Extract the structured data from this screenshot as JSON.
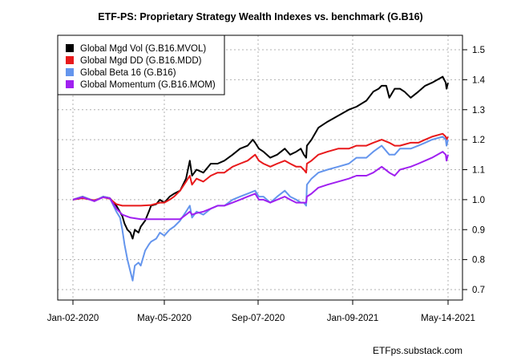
{
  "chart_data": {
    "type": "line",
    "title": "ETF-PS: Proprietary Strategy Wealth Indexes vs. benchmark (G.B16)",
    "source_note": "ETFps.substack.com",
    "xlabel": "",
    "ylabel": "",
    "x_range": [
      "2020-01-02",
      "2021-05-14"
    ],
    "ylim": [
      0.67,
      1.53
    ],
    "grid": true,
    "legend_position": "top-left",
    "x_ticks": [
      {
        "label": "Jan-02-2020",
        "date": "2020-01-02"
      },
      {
        "label": "May-05-2020",
        "date": "2020-05-05"
      },
      {
        "label": "Sep-07-2020",
        "date": "2020-09-07"
      },
      {
        "label": "Jan-09-2021",
        "date": "2021-01-09"
      },
      {
        "label": "May-14-2021",
        "date": "2021-05-14"
      }
    ],
    "y_ticks": [
      0.7,
      0.8,
      0.9,
      1.0,
      1.1,
      1.2,
      1.3,
      1.4,
      1.5
    ],
    "y_tick_labels": [
      "0.7",
      "0.8",
      "0.9",
      "1.0",
      "1.1",
      "1.2",
      "1.3",
      "1.4",
      "1.5"
    ],
    "series": [
      {
        "name": "Global Mgd Vol (G.B16.MVOL)",
        "color": "#000000",
        "points": [
          [
            "2020-01-02",
            1.0
          ],
          [
            "2020-01-15",
            1.01
          ],
          [
            "2020-01-31",
            0.995
          ],
          [
            "2020-02-12",
            1.01
          ],
          [
            "2020-02-21",
            1.005
          ],
          [
            "2020-03-01",
            0.98
          ],
          [
            "2020-03-09",
            0.945
          ],
          [
            "2020-03-12",
            0.92
          ],
          [
            "2020-03-16",
            0.9
          ],
          [
            "2020-03-20",
            0.89
          ],
          [
            "2020-03-23",
            0.87
          ],
          [
            "2020-03-26",
            0.9
          ],
          [
            "2020-03-31",
            0.89
          ],
          [
            "2020-04-03",
            0.91
          ],
          [
            "2020-04-09",
            0.93
          ],
          [
            "2020-04-14",
            0.96
          ],
          [
            "2020-04-17",
            0.98
          ],
          [
            "2020-04-24",
            0.985
          ],
          [
            "2020-04-29",
            1.0
          ],
          [
            "2020-05-05",
            0.99
          ],
          [
            "2020-05-12",
            1.01
          ],
          [
            "2020-05-18",
            1.02
          ],
          [
            "2020-05-26",
            1.03
          ],
          [
            "2020-06-03",
            1.07
          ],
          [
            "2020-06-08",
            1.13
          ],
          [
            "2020-06-11",
            1.08
          ],
          [
            "2020-06-17",
            1.1
          ],
          [
            "2020-06-26",
            1.09
          ],
          [
            "2020-07-06",
            1.12
          ],
          [
            "2020-07-15",
            1.12
          ],
          [
            "2020-07-24",
            1.13
          ],
          [
            "2020-08-04",
            1.15
          ],
          [
            "2020-08-14",
            1.17
          ],
          [
            "2020-08-24",
            1.18
          ],
          [
            "2020-08-31",
            1.2
          ],
          [
            "2020-09-03",
            1.19
          ],
          [
            "2020-09-08",
            1.17
          ],
          [
            "2020-09-14",
            1.16
          ],
          [
            "2020-09-23",
            1.14
          ],
          [
            "2020-10-02",
            1.15
          ],
          [
            "2020-10-12",
            1.17
          ],
          [
            "2020-10-19",
            1.15
          ],
          [
            "2020-10-27",
            1.16
          ],
          [
            "2020-11-02",
            1.17
          ],
          [
            "2020-11-06",
            1.15
          ],
          [
            "2020-11-09",
            1.14
          ],
          [
            "2020-11-10",
            1.18
          ],
          [
            "2020-11-16",
            1.2
          ],
          [
            "2020-11-25",
            1.24
          ],
          [
            "2020-12-07",
            1.26
          ],
          [
            "2020-12-21",
            1.28
          ],
          [
            "2021-01-04",
            1.3
          ],
          [
            "2021-01-14",
            1.31
          ],
          [
            "2021-01-27",
            1.33
          ],
          [
            "2021-02-05",
            1.36
          ],
          [
            "2021-02-12",
            1.37
          ],
          [
            "2021-02-16",
            1.38
          ],
          [
            "2021-02-22",
            1.38
          ],
          [
            "2021-02-26",
            1.34
          ],
          [
            "2021-03-05",
            1.37
          ],
          [
            "2021-03-12",
            1.37
          ],
          [
            "2021-03-18",
            1.36
          ],
          [
            "2021-03-26",
            1.34
          ],
          [
            "2021-04-05",
            1.36
          ],
          [
            "2021-04-14",
            1.38
          ],
          [
            "2021-04-23",
            1.39
          ],
          [
            "2021-04-30",
            1.4
          ],
          [
            "2021-05-07",
            1.41
          ],
          [
            "2021-05-11",
            1.39
          ],
          [
            "2021-05-12",
            1.37
          ],
          [
            "2021-05-14",
            1.39
          ]
        ]
      },
      {
        "name": "Global Mgd DD (G.B16.MDD)",
        "color": "#e8191b",
        "points": [
          [
            "2020-01-02",
            1.0
          ],
          [
            "2020-01-15",
            1.005
          ],
          [
            "2020-01-31",
            0.998
          ],
          [
            "2020-02-12",
            1.008
          ],
          [
            "2020-02-21",
            1.003
          ],
          [
            "2020-03-01",
            0.985
          ],
          [
            "2020-03-09",
            0.98
          ],
          [
            "2020-03-20",
            0.98
          ],
          [
            "2020-04-03",
            0.98
          ],
          [
            "2020-04-17",
            0.982
          ],
          [
            "2020-04-29",
            0.99
          ],
          [
            "2020-05-05",
            0.99
          ],
          [
            "2020-05-12",
            1.0
          ],
          [
            "2020-05-18",
            1.01
          ],
          [
            "2020-05-26",
            1.03
          ],
          [
            "2020-06-03",
            1.06
          ],
          [
            "2020-06-08",
            1.08
          ],
          [
            "2020-06-11",
            1.05
          ],
          [
            "2020-06-17",
            1.07
          ],
          [
            "2020-06-26",
            1.06
          ],
          [
            "2020-07-06",
            1.08
          ],
          [
            "2020-07-15",
            1.09
          ],
          [
            "2020-07-24",
            1.09
          ],
          [
            "2020-08-04",
            1.11
          ],
          [
            "2020-08-14",
            1.12
          ],
          [
            "2020-08-24",
            1.13
          ],
          [
            "2020-09-03",
            1.15
          ],
          [
            "2020-09-08",
            1.13
          ],
          [
            "2020-09-14",
            1.12
          ],
          [
            "2020-09-23",
            1.11
          ],
          [
            "2020-10-02",
            1.12
          ],
          [
            "2020-10-12",
            1.13
          ],
          [
            "2020-10-19",
            1.12
          ],
          [
            "2020-10-27",
            1.11
          ],
          [
            "2020-11-02",
            1.11
          ],
          [
            "2020-11-06",
            1.1
          ],
          [
            "2020-11-09",
            1.09
          ],
          [
            "2020-11-10",
            1.12
          ],
          [
            "2020-11-16",
            1.13
          ],
          [
            "2020-11-25",
            1.15
          ],
          [
            "2020-12-07",
            1.16
          ],
          [
            "2020-12-21",
            1.17
          ],
          [
            "2021-01-04",
            1.17
          ],
          [
            "2021-01-14",
            1.18
          ],
          [
            "2021-01-27",
            1.18
          ],
          [
            "2021-02-05",
            1.19
          ],
          [
            "2021-02-16",
            1.2
          ],
          [
            "2021-02-26",
            1.19
          ],
          [
            "2021-03-05",
            1.18
          ],
          [
            "2021-03-12",
            1.18
          ],
          [
            "2021-03-26",
            1.19
          ],
          [
            "2021-04-05",
            1.19
          ],
          [
            "2021-04-14",
            1.2
          ],
          [
            "2021-04-23",
            1.21
          ],
          [
            "2021-05-07",
            1.22
          ],
          [
            "2021-05-11",
            1.21
          ],
          [
            "2021-05-12",
            1.2
          ],
          [
            "2021-05-14",
            1.21
          ]
        ]
      },
      {
        "name": "Global Beta 16 (G.B16)",
        "color": "#6495ed",
        "points": [
          [
            "2020-01-02",
            1.0
          ],
          [
            "2020-01-15",
            1.01
          ],
          [
            "2020-01-31",
            0.995
          ],
          [
            "2020-02-12",
            1.01
          ],
          [
            "2020-02-21",
            1.005
          ],
          [
            "2020-03-01",
            0.96
          ],
          [
            "2020-03-06",
            0.94
          ],
          [
            "2020-03-09",
            0.9
          ],
          [
            "2020-03-12",
            0.85
          ],
          [
            "2020-03-16",
            0.8
          ],
          [
            "2020-03-20",
            0.76
          ],
          [
            "2020-03-23",
            0.73
          ],
          [
            "2020-03-26",
            0.78
          ],
          [
            "2020-03-31",
            0.79
          ],
          [
            "2020-04-03",
            0.78
          ],
          [
            "2020-04-09",
            0.83
          ],
          [
            "2020-04-14",
            0.85
          ],
          [
            "2020-04-17",
            0.86
          ],
          [
            "2020-04-24",
            0.87
          ],
          [
            "2020-04-29",
            0.89
          ],
          [
            "2020-05-05",
            0.88
          ],
          [
            "2020-05-12",
            0.9
          ],
          [
            "2020-05-18",
            0.91
          ],
          [
            "2020-05-26",
            0.93
          ],
          [
            "2020-06-03",
            0.96
          ],
          [
            "2020-06-08",
            0.98
          ],
          [
            "2020-06-11",
            0.94
          ],
          [
            "2020-06-17",
            0.96
          ],
          [
            "2020-06-26",
            0.95
          ],
          [
            "2020-07-06",
            0.97
          ],
          [
            "2020-07-15",
            0.98
          ],
          [
            "2020-07-24",
            0.98
          ],
          [
            "2020-08-04",
            1.0
          ],
          [
            "2020-08-14",
            1.01
          ],
          [
            "2020-08-24",
            1.02
          ],
          [
            "2020-09-03",
            1.03
          ],
          [
            "2020-09-08",
            1.01
          ],
          [
            "2020-09-14",
            1.01
          ],
          [
            "2020-09-23",
            0.99
          ],
          [
            "2020-10-02",
            1.01
          ],
          [
            "2020-10-12",
            1.03
          ],
          [
            "2020-10-19",
            1.01
          ],
          [
            "2020-10-27",
            1.0
          ],
          [
            "2020-11-02",
            0.99
          ],
          [
            "2020-11-06",
            0.99
          ],
          [
            "2020-11-09",
            0.98
          ],
          [
            "2020-11-10",
            1.05
          ],
          [
            "2020-11-16",
            1.07
          ],
          [
            "2020-11-25",
            1.09
          ],
          [
            "2020-12-07",
            1.1
          ],
          [
            "2020-12-21",
            1.11
          ],
          [
            "2021-01-04",
            1.12
          ],
          [
            "2021-01-14",
            1.14
          ],
          [
            "2021-01-27",
            1.14
          ],
          [
            "2021-02-05",
            1.16
          ],
          [
            "2021-02-16",
            1.18
          ],
          [
            "2021-02-26",
            1.15
          ],
          [
            "2021-03-05",
            1.15
          ],
          [
            "2021-03-12",
            1.17
          ],
          [
            "2021-03-26",
            1.17
          ],
          [
            "2021-04-05",
            1.18
          ],
          [
            "2021-04-14",
            1.19
          ],
          [
            "2021-04-23",
            1.2
          ],
          [
            "2021-05-07",
            1.21
          ],
          [
            "2021-05-11",
            1.2
          ],
          [
            "2021-05-12",
            1.18
          ],
          [
            "2021-05-14",
            1.2
          ]
        ]
      },
      {
        "name": "Global Momentum (G.B16.MOM)",
        "color": "#a020f0",
        "points": [
          [
            "2020-01-02",
            1.0
          ],
          [
            "2020-01-15",
            1.008
          ],
          [
            "2020-01-31",
            0.995
          ],
          [
            "2020-02-12",
            1.008
          ],
          [
            "2020-02-21",
            1.005
          ],
          [
            "2020-03-01",
            0.97
          ],
          [
            "2020-03-09",
            0.95
          ],
          [
            "2020-03-20",
            0.94
          ],
          [
            "2020-04-03",
            0.935
          ],
          [
            "2020-04-17",
            0.935
          ],
          [
            "2020-04-29",
            0.935
          ],
          [
            "2020-05-05",
            0.935
          ],
          [
            "2020-05-12",
            0.935
          ],
          [
            "2020-05-18",
            0.935
          ],
          [
            "2020-05-26",
            0.935
          ],
          [
            "2020-06-03",
            0.95
          ],
          [
            "2020-06-08",
            0.96
          ],
          [
            "2020-06-11",
            0.95
          ],
          [
            "2020-06-17",
            0.955
          ],
          [
            "2020-06-26",
            0.96
          ],
          [
            "2020-07-06",
            0.97
          ],
          [
            "2020-07-15",
            0.98
          ],
          [
            "2020-07-24",
            0.98
          ],
          [
            "2020-08-04",
            0.99
          ],
          [
            "2020-08-14",
            1.0
          ],
          [
            "2020-08-24",
            1.01
          ],
          [
            "2020-09-03",
            1.02
          ],
          [
            "2020-09-08",
            1.0
          ],
          [
            "2020-09-14",
            1.0
          ],
          [
            "2020-09-23",
            0.99
          ],
          [
            "2020-10-02",
            1.0
          ],
          [
            "2020-10-12",
            1.01
          ],
          [
            "2020-10-19",
            1.0
          ],
          [
            "2020-10-27",
            0.99
          ],
          [
            "2020-11-02",
            0.99
          ],
          [
            "2020-11-06",
            0.99
          ],
          [
            "2020-11-09",
            0.99
          ],
          [
            "2020-11-10",
            1.01
          ],
          [
            "2020-11-16",
            1.02
          ],
          [
            "2020-11-25",
            1.04
          ],
          [
            "2020-12-07",
            1.05
          ],
          [
            "2020-12-21",
            1.06
          ],
          [
            "2021-01-04",
            1.07
          ],
          [
            "2021-01-14",
            1.08
          ],
          [
            "2021-01-27",
            1.08
          ],
          [
            "2021-02-05",
            1.09
          ],
          [
            "2021-02-16",
            1.11
          ],
          [
            "2021-02-26",
            1.09
          ],
          [
            "2021-03-05",
            1.08
          ],
          [
            "2021-03-12",
            1.1
          ],
          [
            "2021-03-26",
            1.11
          ],
          [
            "2021-04-05",
            1.12
          ],
          [
            "2021-04-14",
            1.13
          ],
          [
            "2021-04-23",
            1.14
          ],
          [
            "2021-05-07",
            1.16
          ],
          [
            "2021-05-11",
            1.15
          ],
          [
            "2021-05-12",
            1.13
          ],
          [
            "2021-05-14",
            1.15
          ]
        ]
      }
    ]
  }
}
